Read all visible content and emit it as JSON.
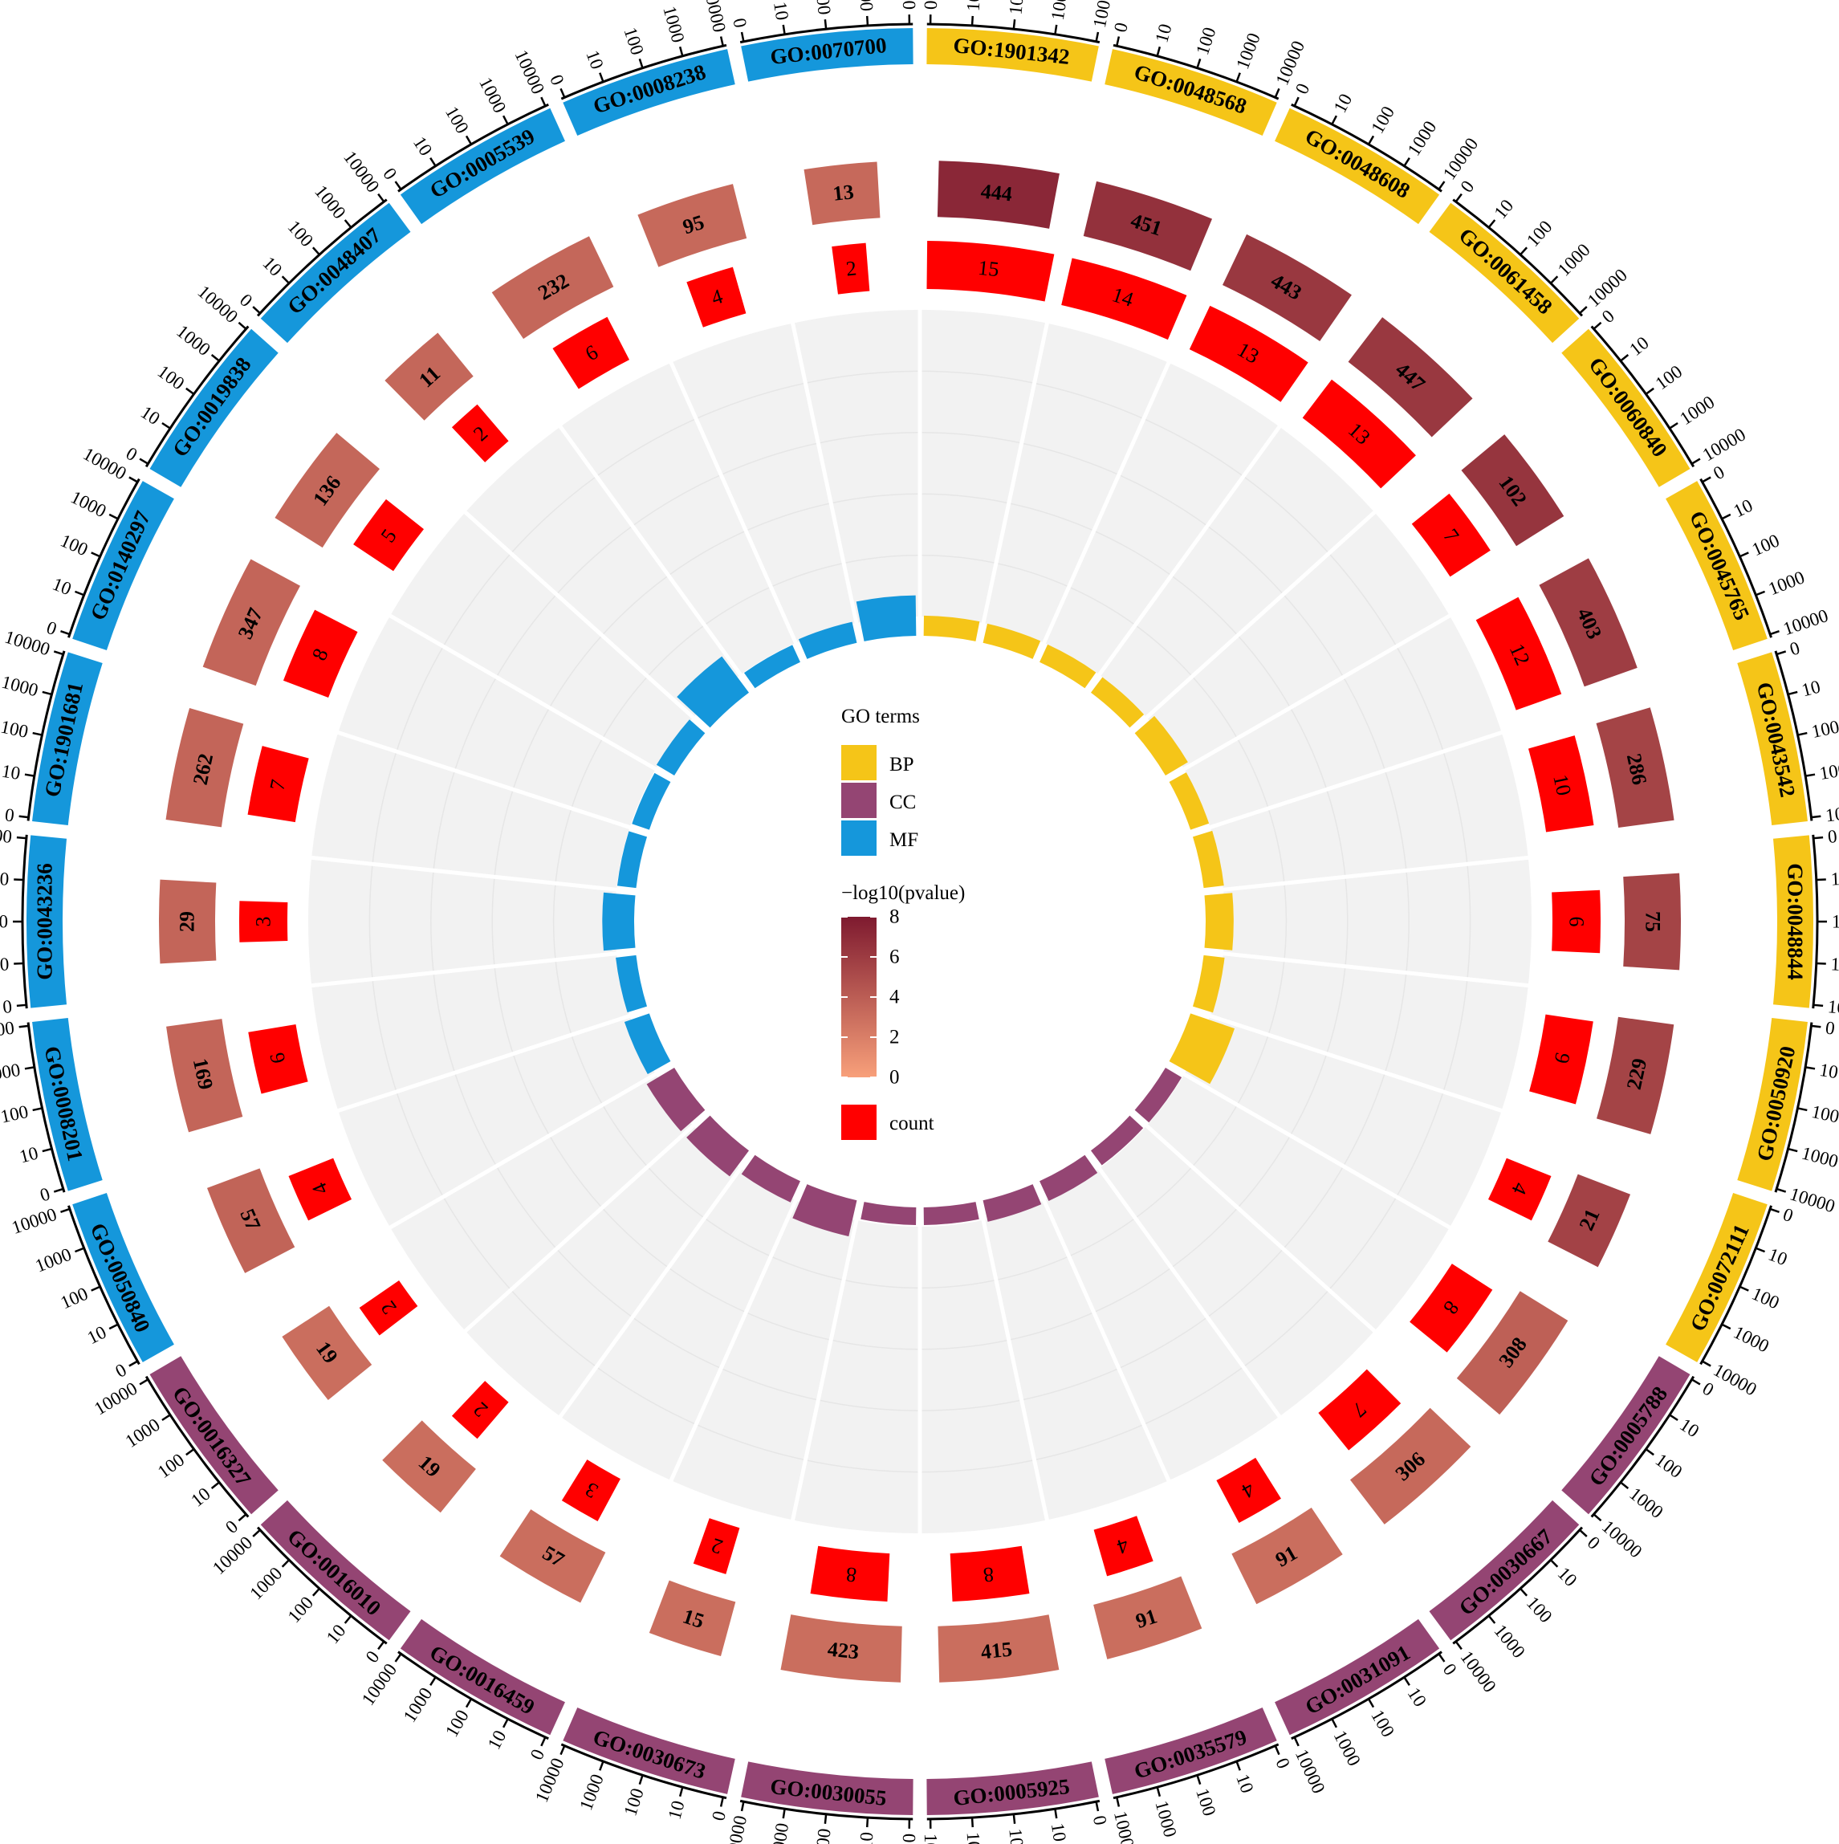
{
  "chart_data": {
    "type": "circos",
    "scale_ticks": [
      "0",
      "10",
      "100",
      "1000",
      "10000"
    ],
    "colors": {
      "BP": "#F5C518",
      "CC": "#944573",
      "MF": "#1597DB",
      "count": "#FF0000",
      "pvalue_low": "#F8A07A",
      "pvalue_high": "#7E1A2F",
      "track_bg": "#F2F2F2"
    },
    "sectors": [
      {
        "id": "GO:1901342",
        "group": "BP",
        "genes": 444,
        "count": 15,
        "rich": 0.034,
        "pvalue": 7.2
      },
      {
        "id": "GO:0048568",
        "group": "BP",
        "genes": 451,
        "count": 14,
        "rich": 0.031,
        "pvalue": 6.6
      },
      {
        "id": "GO:0048608",
        "group": "BP",
        "genes": 443,
        "count": 13,
        "rich": 0.029,
        "pvalue": 6.2
      },
      {
        "id": "GO:0061458",
        "group": "BP",
        "genes": 447,
        "count": 13,
        "rich": 0.029,
        "pvalue": 6.2
      },
      {
        "id": "GO:0060840",
        "group": "BP",
        "genes": 102,
        "count": 7,
        "rich": 0.069,
        "pvalue": 6.4
      },
      {
        "id": "GO:0045765",
        "group": "BP",
        "genes": 403,
        "count": 12,
        "rich": 0.03,
        "pvalue": 5.9
      },
      {
        "id": "GO:0043542",
        "group": "BP",
        "genes": 286,
        "count": 10,
        "rich": 0.035,
        "pvalue": 5.5
      },
      {
        "id": "GO:0048844",
        "group": "BP",
        "genes": 75,
        "count": 6,
        "rich": 0.08,
        "pvalue": 5.5
      },
      {
        "id": "GO:0050920",
        "group": "BP",
        "genes": 229,
        "count": 9,
        "rich": 0.039,
        "pvalue": 5.5
      },
      {
        "id": "GO:0072111",
        "group": "BP",
        "genes": 21,
        "count": 4,
        "rich": 0.19,
        "pvalue": 5.6
      },
      {
        "id": "GO:0005788",
        "group": "CC",
        "genes": 308,
        "count": 8,
        "rich": 0.026,
        "pvalue": 3.8
      },
      {
        "id": "GO:0030667",
        "group": "CC",
        "genes": 306,
        "count": 7,
        "rich": 0.023,
        "pvalue": 3.3
      },
      {
        "id": "GO:0031091",
        "group": "CC",
        "genes": 91,
        "count": 4,
        "rich": 0.044,
        "pvalue": 3.0
      },
      {
        "id": "GO:0035579",
        "group": "CC",
        "genes": 91,
        "count": 4,
        "rich": 0.044,
        "pvalue": 3.0
      },
      {
        "id": "GO:0005925",
        "group": "CC",
        "genes": 415,
        "count": 8,
        "rich": 0.019,
        "pvalue": 3.0
      },
      {
        "id": "GO:0030055",
        "group": "CC",
        "genes": 423,
        "count": 8,
        "rich": 0.019,
        "pvalue": 3.0
      },
      {
        "id": "GO:0030673",
        "group": "CC",
        "genes": 15,
        "count": 2,
        "rich": 0.133,
        "pvalue": 3.0
      },
      {
        "id": "GO:0016459",
        "group": "CC",
        "genes": 57,
        "count": 3,
        "rich": 0.053,
        "pvalue": 3.0
      },
      {
        "id": "GO:0016010",
        "group": "CC",
        "genes": 19,
        "count": 2,
        "rich": 0.105,
        "pvalue": 3.0
      },
      {
        "id": "GO:0016327",
        "group": "CC",
        "genes": 19,
        "count": 2,
        "rich": 0.105,
        "pvalue": 3.0
      },
      {
        "id": "GO:0050840",
        "group": "MF",
        "genes": 57,
        "count": 4,
        "rich": 0.07,
        "pvalue": 3.6
      },
      {
        "id": "GO:0008201",
        "group": "MF",
        "genes": 169,
        "count": 6,
        "rich": 0.036,
        "pvalue": 3.5
      },
      {
        "id": "GO:0043236",
        "group": "MF",
        "genes": 29,
        "count": 3,
        "rich": 0.103,
        "pvalue": 3.5
      },
      {
        "id": "GO:1901681",
        "group": "MF",
        "genes": 262,
        "count": 7,
        "rich": 0.027,
        "pvalue": 3.5
      },
      {
        "id": "GO:0140297",
        "group": "MF",
        "genes": 347,
        "count": 8,
        "rich": 0.023,
        "pvalue": 3.5
      },
      {
        "id": "GO:0019838",
        "group": "MF",
        "genes": 136,
        "count": 5,
        "rich": 0.037,
        "pvalue": 3.4
      },
      {
        "id": "GO:0048407",
        "group": "MF",
        "genes": 11,
        "count": 2,
        "rich": 0.182,
        "pvalue": 3.4
      },
      {
        "id": "GO:0005539",
        "group": "MF",
        "genes": 232,
        "count": 6,
        "rich": 0.026,
        "pvalue": 3.4
      },
      {
        "id": "GO:0008238",
        "group": "MF",
        "genes": 95,
        "count": 4,
        "rich": 0.042,
        "pvalue": 3.3
      },
      {
        "id": "GO:0070700",
        "group": "MF",
        "genes": 13,
        "count": 2,
        "rich": 0.154,
        "pvalue": 3.3
      }
    ],
    "legend": {
      "groups_title": "GO terms",
      "groups": [
        "BP",
        "CC",
        "MF"
      ],
      "gradient_title": "−log10(pvalue)",
      "gradient_ticks": [
        "0",
        "2",
        "4",
        "6",
        "8"
      ],
      "gradient_range": [
        0,
        8
      ],
      "count_label": "count"
    }
  }
}
